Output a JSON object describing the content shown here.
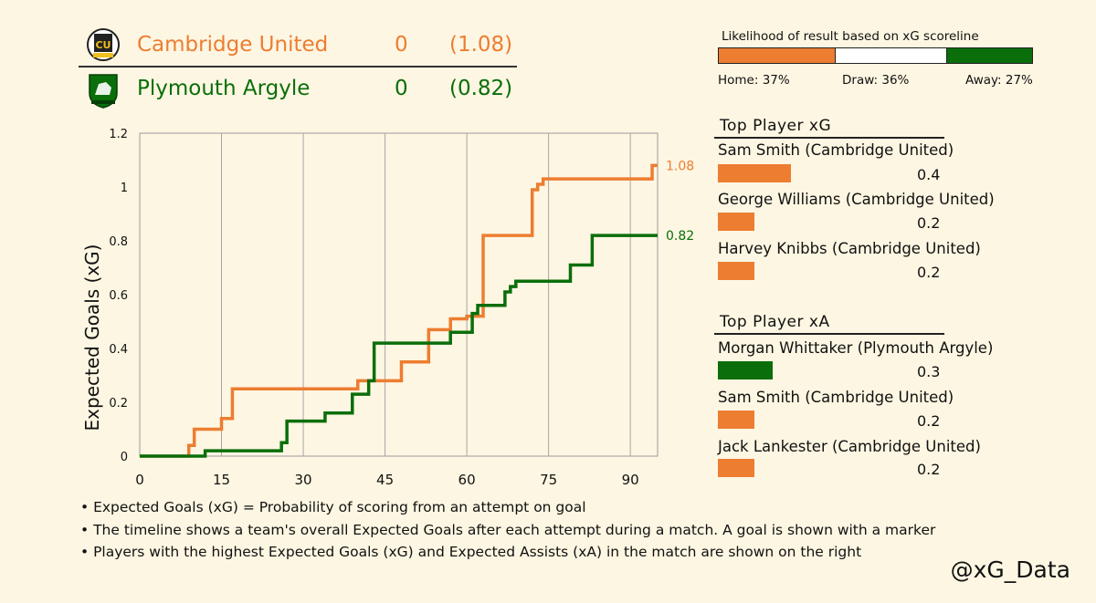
{
  "teams": {
    "home": {
      "name": "Cambridge United",
      "score": "0",
      "xg": "(1.08)",
      "color": "#ed7d31",
      "crest_text": "CU"
    },
    "away": {
      "name": "Plymouth Argyle",
      "score": "0",
      "xg": "(0.82)",
      "color": "#0a6e0a"
    }
  },
  "likelihood": {
    "title": "Likelihood of result based on xG scoreline",
    "home": {
      "label": "Home: 37%",
      "pct": 37,
      "color": "#ed7d31"
    },
    "draw": {
      "label": "Draw: 36%",
      "pct": 36,
      "color": "#ffffff"
    },
    "away": {
      "label": "Away: 27%",
      "pct": 27,
      "color": "#0a6e0a"
    }
  },
  "top_xg": {
    "title": "Top Player xG",
    "players": [
      {
        "name": "Sam Smith (Cambridge United)",
        "value": "0.4",
        "amount": 0.4,
        "color": "#ed7d31"
      },
      {
        "name": "George Williams (Cambridge United)",
        "value": "0.2",
        "amount": 0.2,
        "color": "#ed7d31"
      },
      {
        "name": "Harvey Knibbs (Cambridge United)",
        "value": "0.2",
        "amount": 0.2,
        "color": "#ed7d31"
      }
    ]
  },
  "top_xa": {
    "title": "Top Player xA",
    "players": [
      {
        "name": "Morgan Whittaker (Plymouth Argyle)",
        "value": "0.3",
        "amount": 0.3,
        "color": "#0a6e0a"
      },
      {
        "name": "Sam Smith (Cambridge United)",
        "value": "0.2",
        "amount": 0.2,
        "color": "#ed7d31"
      },
      {
        "name": "Jack Lankester (Cambridge United)",
        "value": "0.2",
        "amount": 0.2,
        "color": "#ed7d31"
      }
    ]
  },
  "notes": [
    "• Expected Goals (xG) = Probability of scoring from an attempt on goal",
    "• The timeline shows a team's overall Expected Goals after each attempt during a match. A goal is shown with a marker",
    "• Players with the highest Expected Goals (xG) and Expected Assists (xA) in the match are shown on the right"
  ],
  "handle": "@xG_Data",
  "chart_data": {
    "type": "line",
    "step": true,
    "ylabel": "Expected Goals (xG)",
    "xlabel": "",
    "xlim": [
      0,
      95
    ],
    "ylim": [
      0,
      1.2
    ],
    "x_ticks": [
      0,
      15,
      30,
      45,
      60,
      75,
      90
    ],
    "y_ticks": [
      0,
      0.2,
      0.4,
      0.6,
      0.8,
      1.0,
      1.2
    ],
    "y_tick_labels": [
      "0",
      "0.2",
      "0.4",
      "0.6",
      "0.8",
      "1",
      "1.2"
    ],
    "grid_x": true,
    "grid_y": false,
    "series": [
      {
        "team": "home",
        "color": "#ed7d31",
        "end_label": "1.08",
        "x": [
          0,
          9,
          10,
          15,
          17,
          40,
          48,
          53,
          57,
          60,
          63,
          72,
          73,
          74,
          94,
          95
        ],
        "y": [
          0,
          0.04,
          0.1,
          0.14,
          0.25,
          0.28,
          0.35,
          0.47,
          0.51,
          0.52,
          0.82,
          0.99,
          1.01,
          1.03,
          1.08,
          1.08
        ]
      },
      {
        "team": "away",
        "color": "#0a6e0a",
        "end_label": "0.82",
        "x": [
          0,
          12,
          26,
          27,
          34,
          39,
          42,
          43,
          57,
          61,
          62,
          67,
          68,
          69,
          79,
          83,
          95
        ],
        "y": [
          0,
          0.02,
          0.05,
          0.13,
          0.16,
          0.23,
          0.28,
          0.42,
          0.46,
          0.53,
          0.56,
          0.61,
          0.63,
          0.65,
          0.71,
          0.82,
          0.82
        ]
      }
    ]
  }
}
